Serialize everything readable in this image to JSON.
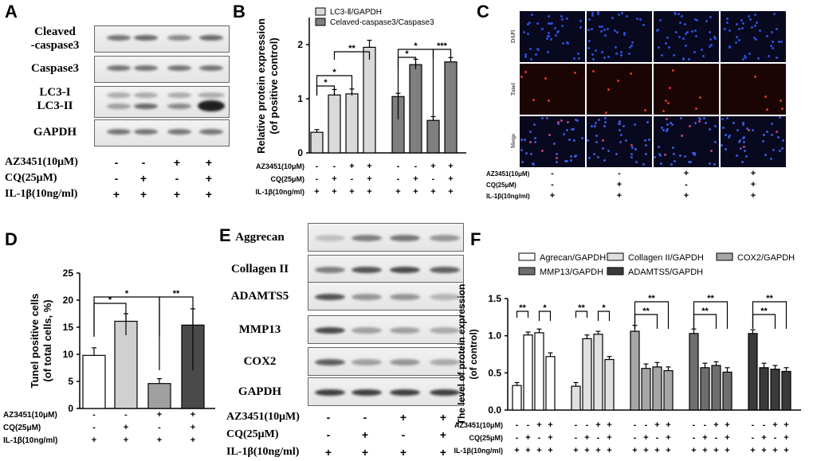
{
  "panels": {
    "A": "A",
    "B": "B",
    "C": "C",
    "D": "D",
    "E": "E",
    "F": "F"
  },
  "panelA": {
    "bands": [
      "Cleaved\n-caspase3",
      "Caspase3",
      "LC3-I\nLC3-II",
      "GAPDH"
    ],
    "conditions": [
      "AZ3451(10μM)",
      "CQ(25μM)",
      "IL-1β(10ng/ml)"
    ],
    "signs": [
      [
        "-",
        "-",
        "+",
        "+"
      ],
      [
        "-",
        "+",
        "-",
        "+"
      ],
      [
        "+",
        "+",
        "+",
        "+"
      ]
    ]
  },
  "panelB": {
    "ylabel": "Relative protein expression",
    "ylabel2": "(of positive control)",
    "conditions": [
      "AZ3451(10μM)",
      "CQ(25μM)",
      "IL-1β(10ng/ml)"
    ],
    "signs": [
      [
        "-",
        "-",
        "+",
        "+",
        "-",
        "-",
        "+",
        "+"
      ],
      [
        "-",
        "+",
        "-",
        "+",
        "-",
        "+",
        "-",
        "+"
      ],
      [
        "+",
        "+",
        "+",
        "+",
        "+",
        "+",
        "+",
        "+"
      ]
    ],
    "sig": [
      "*",
      "*",
      "*",
      "**",
      "*",
      "*",
      "*",
      "***"
    ]
  },
  "panelC": {
    "rows": [
      "DAPI",
      "Tunel",
      "Merge"
    ],
    "conditions": [
      "AZ3451(10μM)",
      "CQ(25μM)",
      "IL-1β(10ng/ml)"
    ],
    "signs": [
      [
        "-",
        "-",
        "+",
        "+"
      ],
      [
        "-",
        "+",
        "-",
        "+"
      ],
      [
        "+",
        "+",
        "+",
        "+"
      ]
    ]
  },
  "panelD": {
    "ylabel": "Tunel positive cells",
    "ylabel2": "(of total cells, %)",
    "conditions": [
      "AZ3451(10μM)",
      "CQ(25μM)",
      "IL-1β(10ng/ml)"
    ],
    "signs": [
      [
        "-",
        "-",
        "+",
        "+"
      ],
      [
        "-",
        "+",
        "-",
        "+"
      ],
      [
        "+",
        "+",
        "+",
        "+"
      ]
    ],
    "sig": [
      "*",
      "*",
      "**"
    ]
  },
  "panelE": {
    "bands": [
      "Aggrecan",
      "Collagen II",
      "ADAMTS5",
      "MMP13",
      "COX2",
      "GAPDH"
    ],
    "conditions": [
      "AZ3451(10μM)",
      "CQ(25μM)",
      "IL-1β(10ng/ml)"
    ],
    "signs": [
      [
        "-",
        "-",
        "+",
        "+"
      ],
      [
        "-",
        "+",
        "-",
        "+"
      ],
      [
        "+",
        "+",
        "+",
        "+"
      ]
    ]
  },
  "panelF": {
    "ylabel": "The level of protein expression",
    "ylabel2": "(of control)",
    "conditions": [
      "AZ3451(10μM)",
      "CQ(25μM)",
      "IL-1β(10ng/ml)"
    ],
    "sign_rows": [
      [
        "-",
        "-",
        "+",
        "+"
      ],
      [
        "-",
        "+",
        "-",
        "+"
      ],
      [
        "+",
        "+",
        "+",
        "+"
      ]
    ],
    "sig": [
      "**",
      "*",
      "**",
      "*",
      "**",
      "**",
      "**",
      "**",
      "**",
      "**"
    ]
  },
  "chart_data": [
    {
      "id": "B",
      "type": "bar",
      "series": [
        {
          "name": "LC3-Ⅱ/GAPDH",
          "values": [
            0.38,
            1.07,
            1.09,
            1.95
          ],
          "errors": [
            0.05,
            0.1,
            0.09,
            0.13
          ],
          "color": "#d9d9d9"
        },
        {
          "name": "Celaved-caspase3/Caspase3",
          "values": [
            1.04,
            1.63,
            0.6,
            1.68
          ],
          "errors": [
            0.06,
            0.1,
            0.07,
            0.08
          ],
          "color": "#7f7f7f"
        }
      ],
      "ylim": [
        0,
        2.5
      ],
      "yticks": [
        "0",
        "1",
        "2"
      ],
      "legend": "top"
    },
    {
      "id": "D",
      "type": "bar",
      "values": [
        9.8,
        16.1,
        4.6,
        15.4
      ],
      "errors": [
        1.4,
        1.4,
        0.9,
        3.0
      ],
      "colors": [
        "#ffffff",
        "#d0d0d0",
        "#a0a0a0",
        "#4a4a4a"
      ],
      "ylim": [
        0,
        25
      ],
      "yticks": [
        "0",
        "5",
        "10",
        "15",
        "20",
        "25"
      ]
    },
    {
      "id": "F",
      "type": "bar",
      "series": [
        {
          "name": "Agrecan/GAPDH",
          "values": [
            0.33,
            1.01,
            1.04,
            0.72
          ],
          "errors": [
            0.04,
            0.04,
            0.05,
            0.05
          ],
          "color": "#ffffff"
        },
        {
          "name": "Collagen II/GAPDH",
          "values": [
            0.32,
            0.96,
            1.02,
            0.68
          ],
          "errors": [
            0.05,
            0.05,
            0.04,
            0.04
          ],
          "color": "#e0e0e0"
        },
        {
          "name": "COX2/GAPDH",
          "values": [
            1.06,
            0.56,
            0.58,
            0.53
          ],
          "errors": [
            0.08,
            0.06,
            0.06,
            0.05
          ],
          "color": "#a6a6a6"
        },
        {
          "name": "MMP13/GAPDH",
          "values": [
            1.03,
            0.57,
            0.6,
            0.51
          ],
          "errors": [
            0.06,
            0.06,
            0.05,
            0.06
          ],
          "color": "#6e6e6e"
        },
        {
          "name": "ADAMTS5/GAPDH",
          "values": [
            1.03,
            0.57,
            0.55,
            0.52
          ],
          "errors": [
            0.05,
            0.06,
            0.05,
            0.05
          ],
          "color": "#3a3a3a"
        }
      ],
      "ylim": [
        0,
        1.5
      ],
      "yticks": [
        "0.0",
        "0.5",
        "1.0",
        "1.5"
      ]
    }
  ]
}
